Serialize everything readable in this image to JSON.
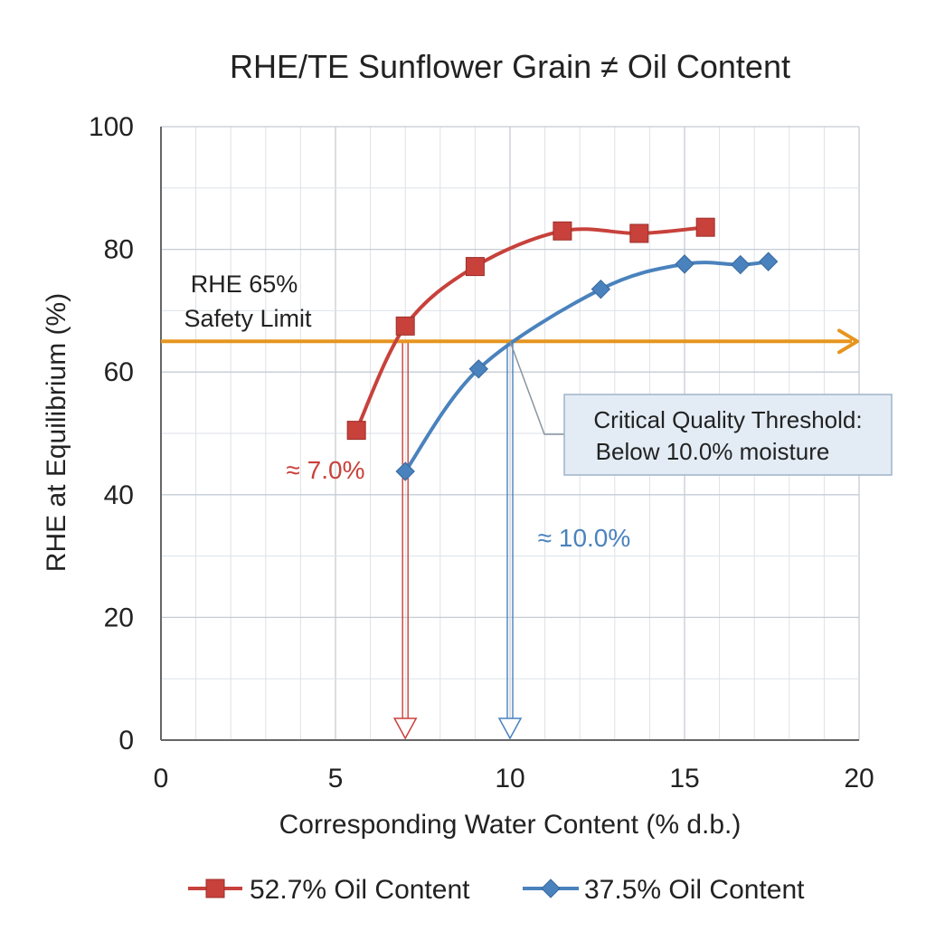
{
  "chart_data": {
    "type": "line",
    "title": "RHE/TE Sunflower Grain ≠ Oil Content",
    "xlabel": "Corresponding Water Content (% d.b.)",
    "ylabel": "RHE at Equilibrium (%)",
    "xlim": [
      0,
      20
    ],
    "ylim": [
      0,
      100
    ],
    "x_ticks": [
      0,
      5,
      10,
      15,
      20
    ],
    "y_ticks": [
      0,
      20,
      40,
      60,
      80,
      100
    ],
    "grid": true,
    "legend_position": "bottom",
    "series": [
      {
        "name": "52.7% Oil Content",
        "color": "#c8413b",
        "marker": "square",
        "points": [
          {
            "x": 5.6,
            "y": 50.5
          },
          {
            "x": 7.0,
            "y": 67.5
          },
          {
            "x": 9.0,
            "y": 77.2
          },
          {
            "x": 11.5,
            "y": 83.0
          },
          {
            "x": 13.7,
            "y": 82.6
          },
          {
            "x": 15.6,
            "y": 83.6
          }
        ]
      },
      {
        "name": "37.5% Oil Content",
        "color": "#4a82bd",
        "marker": "diamond",
        "points": [
          {
            "x": 7.0,
            "y": 43.8
          },
          {
            "x": 9.1,
            "y": 60.5
          },
          {
            "x": 12.6,
            "y": 73.5
          },
          {
            "x": 15.0,
            "y": 77.6
          },
          {
            "x": 16.6,
            "y": 77.5
          },
          {
            "x": 17.4,
            "y": 78.0
          }
        ]
      }
    ],
    "reference_line": {
      "y": 65,
      "color": "#e6951f",
      "label_line1": "RHE 65%",
      "label_line2": "Safety Limit"
    },
    "drop_lines": [
      {
        "x": 7.0,
        "label": "≈ 7.0%",
        "color": "#c8413b"
      },
      {
        "x": 10.0,
        "label": "≈ 10.0%",
        "color": "#4a82bd"
      }
    ],
    "callout": {
      "line1": "Critical Quality Threshold:",
      "line2": "Below 10.0% moisture",
      "anchor_x": 10.0,
      "anchor_y": 65
    }
  }
}
